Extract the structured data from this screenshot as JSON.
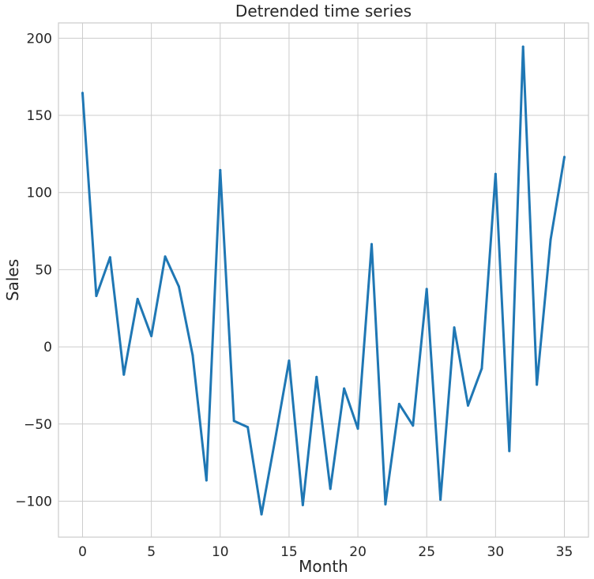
{
  "chart_data": {
    "type": "line",
    "title": "Detrended time series",
    "xlabel": "Month",
    "ylabel": "Sales",
    "xlim": [
      -1.75,
      36.75
    ],
    "ylim": [
      -123.3,
      209.9
    ],
    "xticks": [
      0,
      5,
      10,
      15,
      20,
      25,
      30,
      35
    ],
    "yticks": [
      -100,
      -50,
      0,
      50,
      100,
      150,
      200
    ],
    "ytick_labels": [
      "−100",
      "−50",
      "0",
      "50",
      "100",
      "150",
      "200"
    ],
    "grid": true,
    "series": [
      {
        "color": "#1f77b4",
        "x": [
          0,
          1,
          2,
          3,
          4,
          5,
          6,
          7,
          8,
          9,
          10,
          11,
          12,
          13,
          14,
          15,
          16,
          17,
          18,
          19,
          20,
          21,
          22,
          23,
          24,
          25,
          26,
          27,
          28,
          29,
          30,
          31,
          32,
          33,
          34,
          35
        ],
        "y": [
          164.5,
          33,
          58,
          -18,
          31,
          7,
          58.5,
          39,
          -5.5,
          -86.5,
          114.5,
          -48,
          -52,
          -108.5,
          -59.5,
          -9,
          -102.5,
          -19.5,
          -92,
          -27,
          -53,
          66.5,
          -102,
          -37,
          -51,
          37.5,
          -99,
          12.5,
          -38,
          -14,
          112,
          -67.5,
          194.5,
          -24.5,
          69.5,
          123
        ]
      }
    ]
  }
}
